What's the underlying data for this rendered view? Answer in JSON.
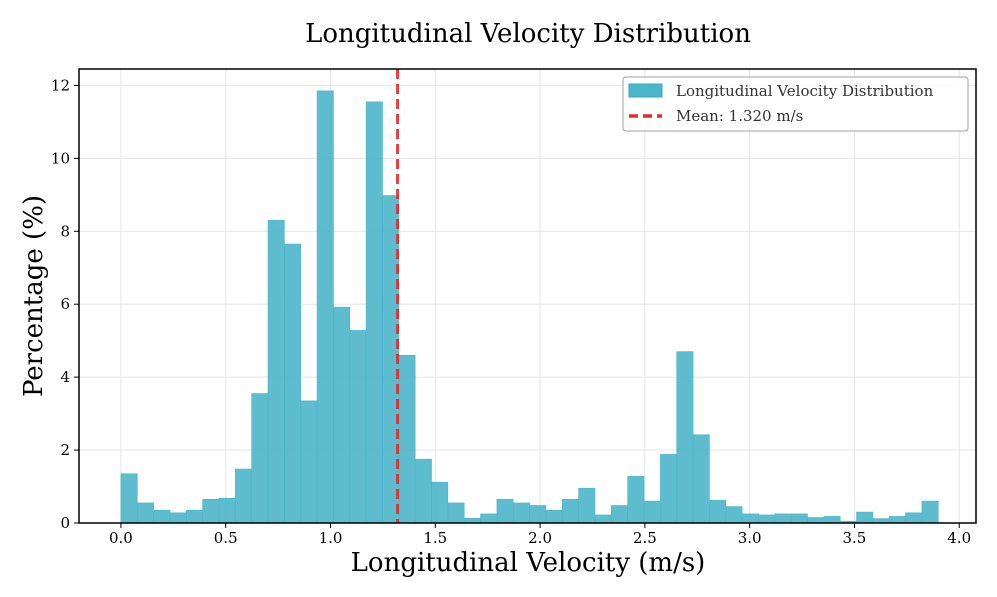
{
  "chart_data": {
    "type": "bar",
    "title": "Longitudinal Velocity Distribution",
    "xlabel": "Longitudinal Velocity (m/s)",
    "ylabel": "Percentage (%)",
    "xlim": [
      -0.2,
      4.08
    ],
    "ylim": [
      0,
      12.45
    ],
    "grid": true,
    "bin_width": 0.078,
    "bins": [
      0.0,
      0.078,
      0.156,
      0.234,
      0.312,
      0.39,
      0.468,
      0.546,
      0.624,
      0.702,
      0.78,
      0.858,
      0.936,
      1.014,
      1.092,
      1.17,
      1.248,
      1.326,
      1.404,
      1.482,
      1.56,
      1.638,
      1.716,
      1.794,
      1.872,
      1.95,
      2.028,
      2.106,
      2.184,
      2.262,
      2.34,
      2.418,
      2.496,
      2.574,
      2.652,
      2.73,
      2.808,
      2.886,
      2.964,
      3.042,
      3.12,
      3.198,
      3.276,
      3.354,
      3.432,
      3.51,
      3.588,
      3.666,
      3.744,
      3.822
    ],
    "values": [
      1.35,
      0.55,
      0.35,
      0.28,
      0.35,
      0.65,
      0.68,
      1.48,
      3.55,
      8.3,
      7.65,
      3.35,
      11.85,
      5.92,
      5.28,
      11.55,
      8.98,
      4.6,
      1.75,
      1.12,
      0.55,
      0.13,
      0.25,
      0.65,
      0.55,
      0.48,
      0.35,
      0.65,
      0.95,
      0.22,
      0.48,
      1.28,
      0.6,
      1.88,
      4.7,
      2.42,
      0.62,
      0.45,
      0.25,
      0.22,
      0.25,
      0.25,
      0.15,
      0.18,
      0.05,
      0.3,
      0.12,
      0.18,
      0.28,
      0.6
    ],
    "mean": 1.32,
    "xticks": [
      0.0,
      0.5,
      1.0,
      1.5,
      2.0,
      2.5,
      3.0,
      3.5,
      4.0
    ],
    "xtick_labels": [
      "0.0",
      "0.5",
      "1.0",
      "1.5",
      "2.0",
      "2.5",
      "3.0",
      "3.5",
      "4.0"
    ],
    "yticks": [
      0,
      2,
      4,
      6,
      8,
      10,
      12
    ],
    "ytick_labels": [
      "0",
      "2",
      "4",
      "6",
      "8",
      "10",
      "12"
    ],
    "legend": {
      "position": "top-right",
      "entries": [
        {
          "label": "Longitudinal Velocity Distribution",
          "kind": "patch"
        },
        {
          "label": "Mean: 1.320 m/s",
          "kind": "dashed-line"
        }
      ]
    },
    "colors": {
      "bar": "#4bb6c9",
      "bar_edge": "#3aa6ba",
      "mean_line": "#e8282a",
      "grid": "#e6e6e6",
      "axis": "#000000"
    }
  }
}
